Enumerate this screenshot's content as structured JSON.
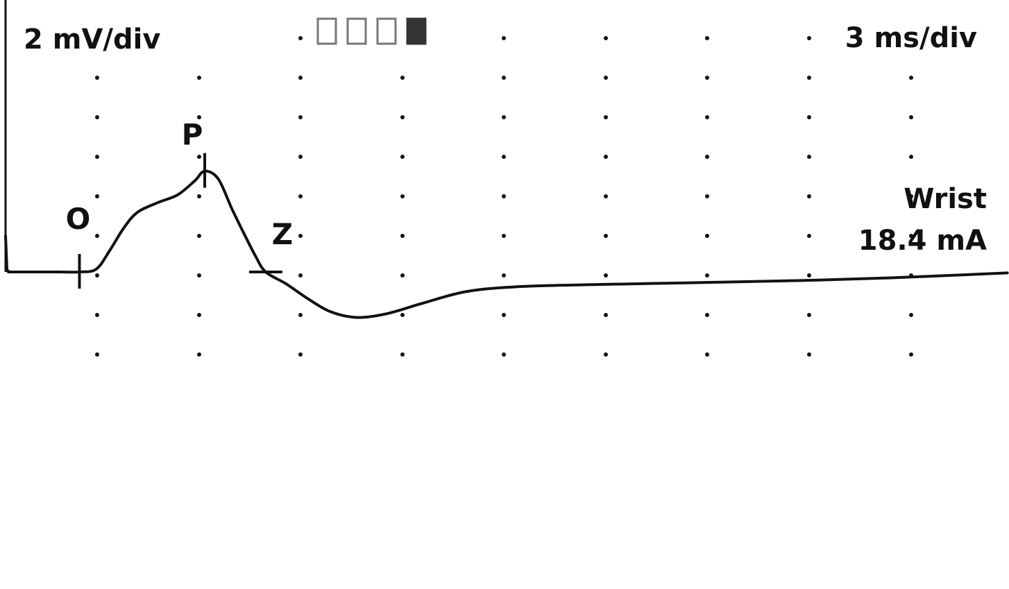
{
  "colors": {
    "trace": "#111111",
    "grid_dot": "#111111",
    "background": "#ffffff"
  },
  "chart_data": {
    "type": "line",
    "title": "",
    "xlabel": "",
    "ylabel": "",
    "x_units": "ms",
    "y_units": "mV",
    "sensitivity_label": "2 mV/div",
    "sweep_label": "3 ms/div",
    "site_label": "Wrist",
    "stimulus_label": "18.4 mA",
    "grid": "dotted",
    "x_div_ms": 3,
    "y_div_mv": 2,
    "x_range": [
      0,
      30
    ],
    "y_range": [
      -3.5,
      7
    ],
    "markers": [
      {
        "id": "O",
        "label": "O",
        "x": 2.1,
        "y": 0
      },
      {
        "id": "P",
        "label": "P",
        "x": 5.8,
        "y": 5.1
      },
      {
        "id": "Z",
        "label": "Z",
        "x": 7.6,
        "y": 0
      }
    ],
    "series": [
      {
        "points": [
          [
            0.0,
            0.0
          ],
          [
            1.5,
            0.0
          ],
          [
            2.1,
            0.0
          ],
          [
            2.6,
            0.15
          ],
          [
            3.0,
            1.1
          ],
          [
            3.4,
            2.2
          ],
          [
            3.8,
            3.0
          ],
          [
            4.4,
            3.5
          ],
          [
            5.0,
            3.9
          ],
          [
            5.5,
            4.6
          ],
          [
            5.8,
            5.1
          ],
          [
            6.2,
            4.7
          ],
          [
            6.6,
            3.2
          ],
          [
            7.0,
            1.8
          ],
          [
            7.3,
            0.8
          ],
          [
            7.6,
            0.0
          ],
          [
            8.2,
            -0.6
          ],
          [
            8.8,
            -1.3
          ],
          [
            9.5,
            -2.0
          ],
          [
            10.3,
            -2.3
          ],
          [
            11.2,
            -2.1
          ],
          [
            12.2,
            -1.6
          ],
          [
            13.5,
            -1.0
          ],
          [
            15.0,
            -0.75
          ],
          [
            17.0,
            -0.65
          ],
          [
            20.0,
            -0.55
          ],
          [
            23.0,
            -0.45
          ],
          [
            26.0,
            -0.3
          ],
          [
            29.5,
            -0.05
          ]
        ]
      }
    ]
  },
  "tabs": {
    "count": 4,
    "active_index": 3
  }
}
